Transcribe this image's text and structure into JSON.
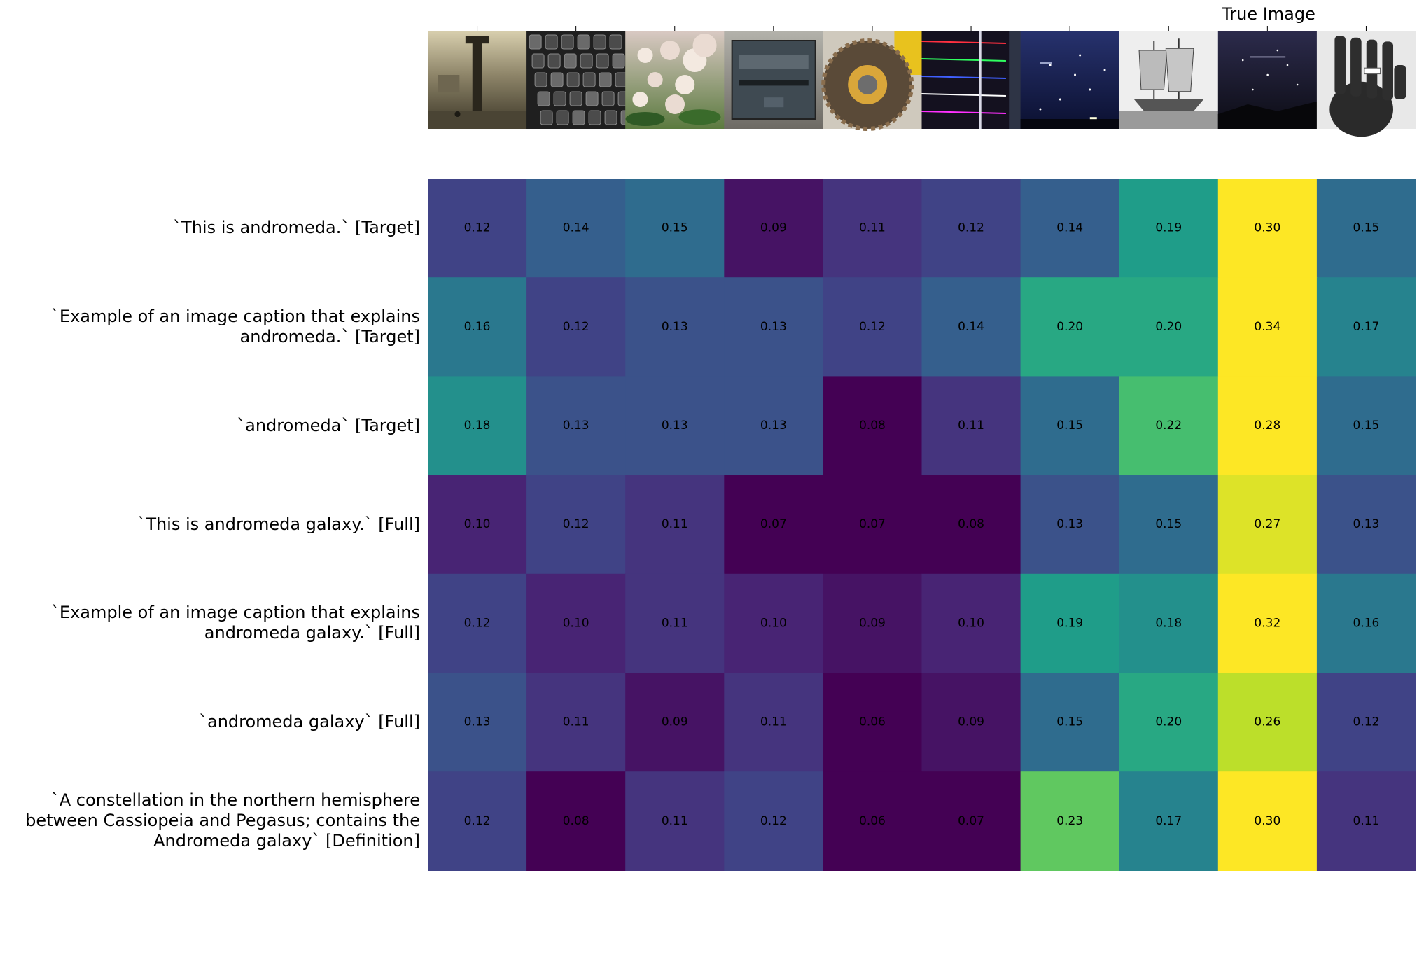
{
  "chart_data": {
    "type": "heatmap",
    "header_label": "True Image",
    "thumbnail_images": [
      "venice-column-painting",
      "keyboard-keys",
      "pieris-flowers",
      "engraved-mailbox",
      "tire-chain",
      "laser-lines",
      "orion-night-sky",
      "sailing-ship-engraving",
      "andromeda-night-sky",
      "hand-xray"
    ],
    "true_image_index": 8,
    "rows": [
      "`This is andromeda.` [Target]",
      "`Example of an image caption that explains\nandromeda.` [Target]",
      "`andromeda` [Target]",
      "`This is andromeda galaxy.` [Full]",
      "`Example of an image caption that explains\nandromeda galaxy.` [Full]",
      "`andromeda galaxy` [Full]",
      "`A constellation in the northern hemisphere\nbetween Cassiopeia and Pegasus; contains the\nAndromeda galaxy` [Definition]"
    ],
    "values": [
      [
        0.12,
        0.14,
        0.15,
        0.09,
        0.11,
        0.12,
        0.14,
        0.19,
        0.3,
        0.15
      ],
      [
        0.16,
        0.12,
        0.13,
        0.13,
        0.12,
        0.14,
        0.2,
        0.2,
        0.34,
        0.17
      ],
      [
        0.18,
        0.13,
        0.13,
        0.13,
        0.08,
        0.11,
        0.15,
        0.22,
        0.28,
        0.15
      ],
      [
        0.1,
        0.12,
        0.11,
        0.07,
        0.07,
        0.08,
        0.13,
        0.15,
        0.27,
        0.13
      ],
      [
        0.12,
        0.1,
        0.11,
        0.1,
        0.09,
        0.1,
        0.19,
        0.18,
        0.32,
        0.16
      ],
      [
        0.13,
        0.11,
        0.09,
        0.11,
        0.06,
        0.09,
        0.15,
        0.2,
        0.26,
        0.12
      ],
      [
        0.12,
        0.08,
        0.11,
        0.12,
        0.06,
        0.07,
        0.23,
        0.17,
        0.3,
        0.11
      ]
    ],
    "colormap": "viridis",
    "color_range": [
      0.08,
      0.28
    ],
    "grid": false,
    "legend": "none"
  }
}
